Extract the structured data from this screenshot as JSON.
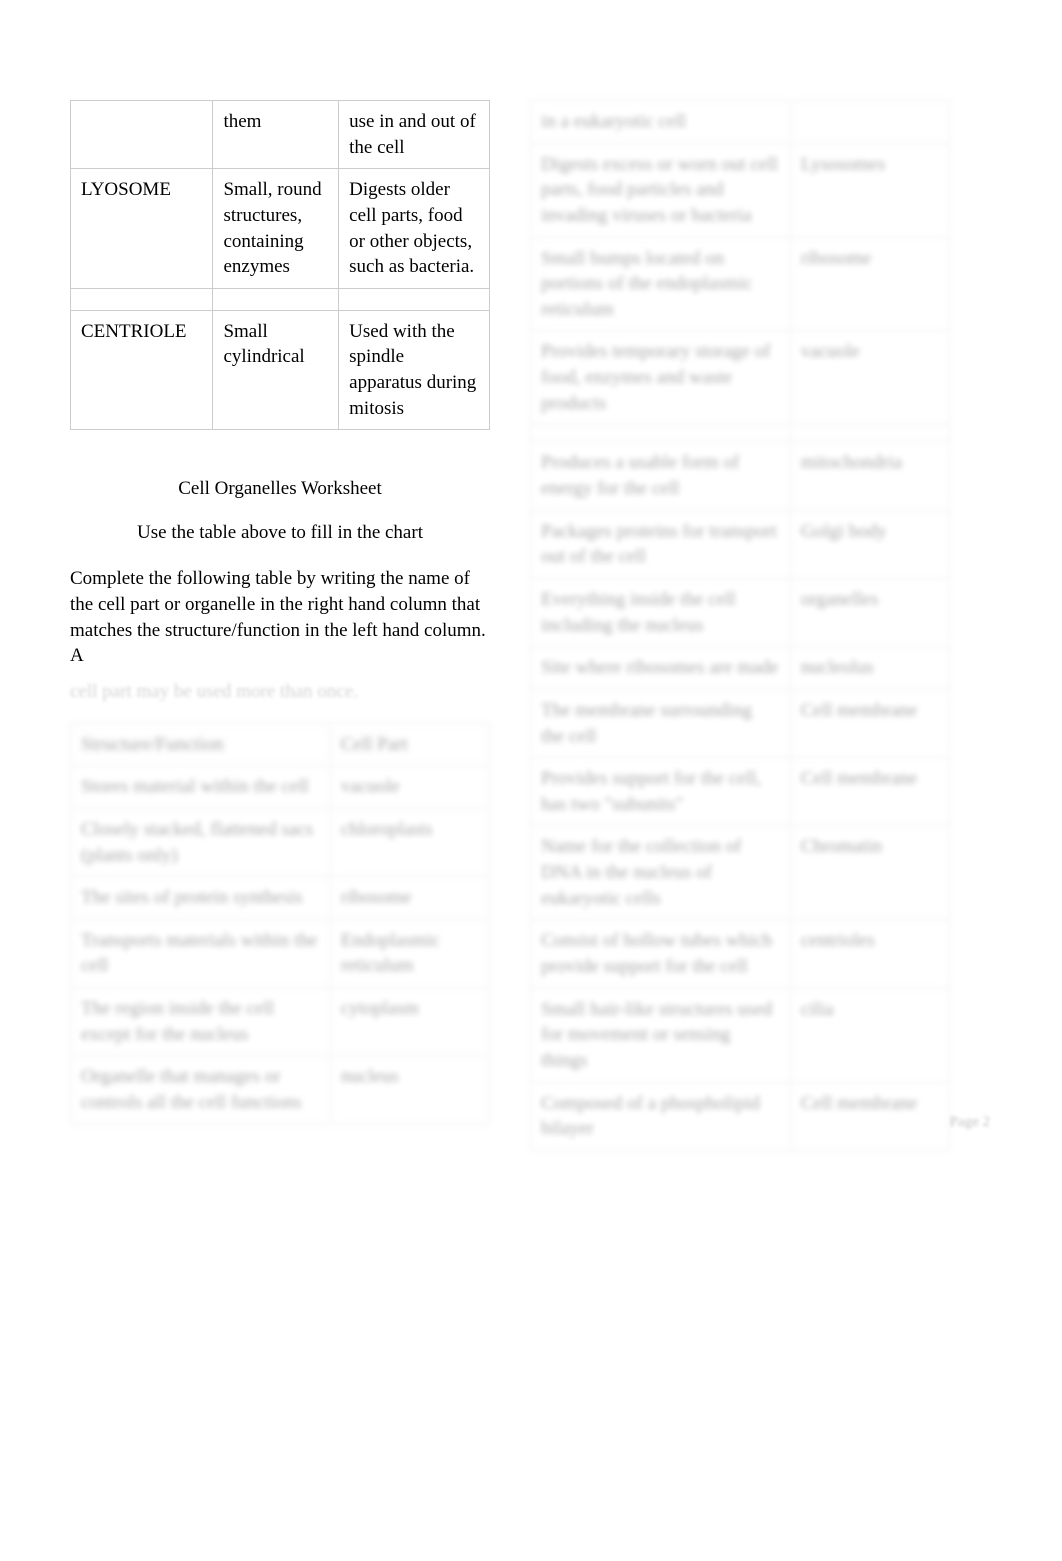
{
  "organelle_table": {
    "partial_top_row": [
      "",
      "them",
      "use in and out of the cell"
    ],
    "rows": [
      [
        "LYOSOME",
        "Small, round structures, containing enzymes",
        "Digests older cell parts, food or other objects, such as bacteria."
      ],
      [
        "CENTRIOLE",
        "Small cylindrical",
        "Used with the spindle apparatus during mitosis"
      ]
    ]
  },
  "worksheet": {
    "title": "Cell Organelles Worksheet",
    "subtitle": "Use the table above to fill in the chart",
    "instructions_visible": "Complete the following table by writing the name of the cell part or organelle in the right hand column that matches the structure/function in the left hand column. A",
    "instructions_faded": "cell part may be used more than once."
  },
  "answer_table": {
    "headers": [
      "Structure/Function",
      "Cell Part"
    ],
    "left_rows": [
      [
        "Stores material within the cell",
        "vacuole"
      ],
      [
        "Closely stacked, flattened sacs (plants only)",
        "chloroplasts"
      ],
      [
        "The sites of protein synthesis",
        "ribosome"
      ],
      [
        "Transports materials within the cell",
        "Endoplasmic reticulum"
      ],
      [
        "The region inside the cell except for the nucleus",
        "cytoplasm"
      ],
      [
        "Organelle that manages or controls all the cell functions",
        "nucleus"
      ]
    ],
    "right_rows": [
      [
        "in a eukaryotic cell",
        ""
      ],
      [
        "Digests excess or worn out cell parts, food particles and invading viruses or bacteria",
        "Lysosomes"
      ],
      [
        "Small bumps located on portions of the endoplasmic reticulum",
        "ribosome"
      ],
      [
        "Provides temporary storage of food, enzymes and waste products",
        "vacuole"
      ],
      [
        "",
        ""
      ],
      [
        "Produces a usable form of energy for the cell",
        "mitochondria"
      ],
      [
        "Packages proteins for transport out of the cell",
        "Golgi body"
      ],
      [
        "Everything inside the cell including the nucleus",
        "organelles"
      ],
      [
        "Site where ribosomes are made",
        "nucleolus"
      ],
      [
        "The membrane surrounding the cell",
        "Cell membrane"
      ],
      [
        "Provides support for the cell, has two \"subunits\"",
        "Cell membrane"
      ],
      [
        "Name for the collection of DNA in the nucleus of eukaryotic cells",
        "Chromatin"
      ],
      [
        "Consist of hollow tubes which provide support for the cell",
        "centrioles"
      ],
      [
        "Small hair-like structures used for movement or sensing things",
        "cilia"
      ],
      [
        "Composed of a phospholipid bilayer",
        "Cell membrane"
      ]
    ]
  },
  "page_label": "Page 2",
  "colors": {
    "text": "#000000",
    "border": "#cccccc",
    "background": "#ffffff",
    "faded_text": "rgba(0,0,0,0.18)"
  },
  "typography": {
    "body_fontsize": 19,
    "page_number_fontsize": 15
  }
}
